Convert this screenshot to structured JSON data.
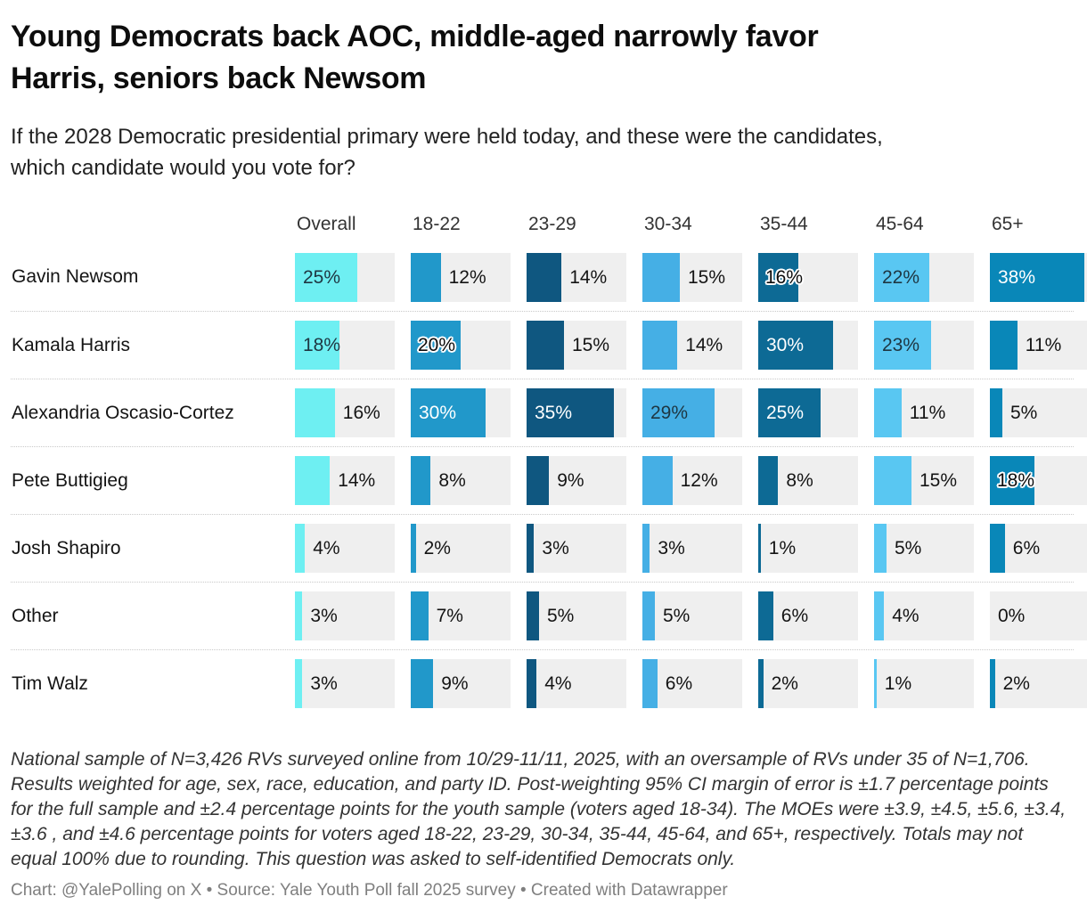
{
  "header": {
    "title_lines": [
      "Young Democrats back AOC, middle-aged narrowly favor",
      "Harris, seniors back Newsom"
    ],
    "subtitle_lines": [
      "If the 2028 Democratic presidential primary were held today, and these were the candidates,",
      "which candidate would you vote for?"
    ]
  },
  "columns": [
    {
      "label": "Overall",
      "color": "#6EEFF2"
    },
    {
      "label": "18-22",
      "color": "#2198CA"
    },
    {
      "label": "23-29",
      "color": "#0F5780"
    },
    {
      "label": "30-34",
      "color": "#45AFE5"
    },
    {
      "label": "35-44",
      "color": "#0D6A95"
    },
    {
      "label": "45-64",
      "color": "#59C7F2"
    },
    {
      "label": "65+",
      "color": "#0987B8"
    }
  ],
  "scale_max": 40,
  "track_color": "#efefef",
  "rows": [
    {
      "label": "Gavin Newsom",
      "values": [
        25,
        12,
        14,
        15,
        16,
        22,
        38
      ],
      "modes": [
        "in-dark",
        "out",
        "out",
        "out",
        "edge",
        "in-dark",
        "in-white"
      ]
    },
    {
      "label": "Kamala Harris",
      "values": [
        18,
        20,
        15,
        14,
        30,
        23,
        11
      ],
      "modes": [
        "in-dark",
        "edge",
        "out",
        "out",
        "in-white",
        "in-dark",
        "out"
      ]
    },
    {
      "label": "Alexandria Oscasio-Cortez",
      "values": [
        16,
        30,
        35,
        29,
        25,
        11,
        5
      ],
      "modes": [
        "out",
        "in-white",
        "in-white",
        "in-dark",
        "in-white",
        "out",
        "out"
      ]
    },
    {
      "label": "Pete Buttigieg",
      "values": [
        14,
        8,
        9,
        12,
        8,
        15,
        18
      ],
      "modes": [
        "out",
        "out",
        "out",
        "out",
        "out",
        "out",
        "edge"
      ]
    },
    {
      "label": "Josh Shapiro",
      "values": [
        4,
        2,
        3,
        3,
        1,
        5,
        6
      ],
      "modes": [
        "out",
        "out",
        "out",
        "out",
        "out",
        "out",
        "out"
      ]
    },
    {
      "label": "Other",
      "values": [
        3,
        7,
        5,
        5,
        6,
        4,
        0
      ],
      "modes": [
        "out",
        "out",
        "out",
        "out",
        "out",
        "out",
        "out"
      ]
    },
    {
      "label": "Tim Walz",
      "values": [
        3,
        9,
        4,
        6,
        2,
        1,
        2
      ],
      "modes": [
        "out",
        "out",
        "out",
        "out",
        "out",
        "out",
        "out"
      ]
    }
  ],
  "value_suffix": "%",
  "footer": {
    "notes": "National sample of N=3,426 RVs surveyed online from 10/29-11/11, 2025, with an oversample of RVs under 35 of N=1,706. Results weighted for age, sex, race, education, and party ID. Post-weighting 95% CI margin of error is ±1.7 percentage points for the full sample and ±2.4 percentage points for the youth sample (voters aged 18-34). The MOEs were ±3.9, ±4.5, ±5.6, ±3.4, ±3.6 , and ±4.6 percentage points for voters aged 18-22, 23-29, 30-34, 35-44, 45-64, and 65+, respectively. Totals may not equal 100% due to rounding. This question was asked to self-identified Democrats only.",
    "credit": "Chart: @YalePolling on X • Source: Yale Youth Poll fall 2025 survey • Created with Datawrapper"
  },
  "chart_data": {
    "type": "bar",
    "title": "Young Democrats back AOC, middle-aged narrowly favor Harris, seniors back Newsom",
    "subtitle": "If the 2028 Democratic presidential primary were held today, and these were the candidates, which candidate would you vote for?",
    "categories": [
      "Overall",
      "18-22",
      "23-29",
      "30-34",
      "35-44",
      "45-64",
      "65+"
    ],
    "series": [
      {
        "name": "Gavin Newsom",
        "values": [
          25,
          12,
          14,
          15,
          16,
          22,
          38
        ]
      },
      {
        "name": "Kamala Harris",
        "values": [
          18,
          20,
          15,
          14,
          30,
          23,
          11
        ]
      },
      {
        "name": "Alexandria Oscasio-Cortez",
        "values": [
          16,
          30,
          35,
          29,
          25,
          11,
          5
        ]
      },
      {
        "name": "Pete Buttigieg",
        "values": [
          14,
          8,
          9,
          12,
          8,
          15,
          18
        ]
      },
      {
        "name": "Josh Shapiro",
        "values": [
          4,
          2,
          3,
          3,
          1,
          5,
          6
        ]
      },
      {
        "name": "Other",
        "values": [
          3,
          7,
          5,
          5,
          6,
          4,
          0
        ]
      },
      {
        "name": "Tim Walz",
        "values": [
          3,
          9,
          4,
          6,
          2,
          1,
          2
        ]
      }
    ],
    "unit": "%",
    "value_axis_range": [
      0,
      40
    ],
    "orientation": "horizontal",
    "grid": false,
    "legend": "none",
    "column_colors": [
      "#6EEFF2",
      "#2198CA",
      "#0F5780",
      "#45AFE5",
      "#0D6A95",
      "#59C7F2",
      "#0987B8"
    ]
  }
}
